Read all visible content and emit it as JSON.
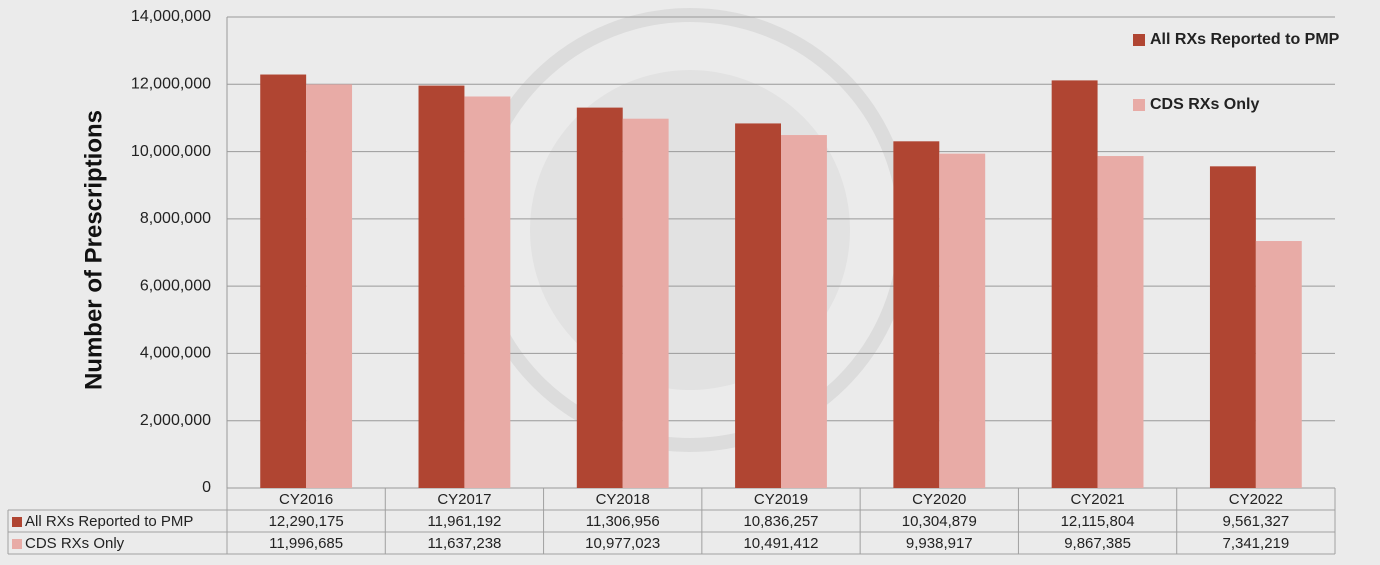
{
  "chart_data": {
    "type": "bar",
    "ylabel": "Number of Prescriptions",
    "categories": [
      "CY2016",
      "CY2017",
      "CY2018",
      "CY2019",
      "CY2020",
      "CY2021",
      "CY2022"
    ],
    "series": [
      {
        "name": "All RXs Reported to PMP",
        "color": "#b04532",
        "values": [
          12290175,
          11961192,
          11306956,
          10836257,
          10304879,
          12115804,
          9561327
        ],
        "value_labels": [
          "12,290,175",
          "11,961,192",
          "11,306,956",
          "10,836,257",
          "10,304,879",
          "12,115,804",
          "9,561,327"
        ]
      },
      {
        "name": "CDS RXs Only",
        "color": "#e8aba6",
        "values": [
          11996685,
          11637238,
          10977023,
          10491412,
          9938917,
          9867385,
          7341219
        ],
        "value_labels": [
          "11,996,685",
          "11,637,238",
          "10,977,023",
          "10,491,412",
          "9,938,917",
          "9,867,385",
          "7,341,219"
        ]
      }
    ],
    "ylim": [
      0,
      14000000
    ],
    "yticks": [
      0,
      {
        "value": 2000000,
        "label": "2,000,000"
      },
      {
        "value": 4000000,
        "label": "4,000,000"
      },
      {
        "value": 6000000,
        "label": "6,000,000"
      },
      {
        "value": 8000000,
        "label": "8,000,000"
      },
      {
        "value": 10000000,
        "label": "10,000,000"
      },
      {
        "value": 12000000,
        "label": "12,000,000"
      },
      {
        "value": 14000000,
        "label": "14,000,000"
      }
    ],
    "grid": true,
    "legend": "top-right",
    "data_table": true
  }
}
